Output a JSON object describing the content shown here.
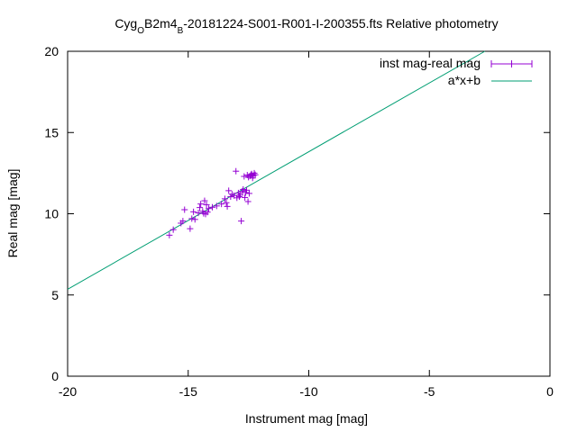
{
  "chart_data": {
    "type": "scatter",
    "title_parts": [
      {
        "text": "Cyg",
        "sub": false
      },
      {
        "text": "O",
        "sub": true
      },
      {
        "text": "B2m4",
        "sub": false
      },
      {
        "text": "B",
        "sub": true
      },
      {
        "text": "-20181224-S001-R001-I-200355.fts Relative photometry",
        "sub": false
      }
    ],
    "xlabel": "Instrument mag [mag]",
    "ylabel": "Real mag [mag]",
    "xlim": [
      -20,
      0
    ],
    "ylim": [
      0,
      20
    ],
    "xticks": [
      -20,
      -15,
      -10,
      -5,
      0
    ],
    "yticks": [
      0,
      5,
      10,
      15,
      20
    ],
    "grid": false,
    "legend_position": "top-right",
    "series": [
      {
        "name": "inst mag-real mag",
        "kind": "errorbar-points",
        "color": "#9400d3",
        "points": [
          [
            -15.78,
            8.68
          ],
          [
            -15.62,
            9.02
          ],
          [
            -15.3,
            9.42
          ],
          [
            -15.22,
            9.55
          ],
          [
            -15.15,
            10.25
          ],
          [
            -14.92,
            9.08
          ],
          [
            -14.85,
            9.7
          ],
          [
            -14.78,
            10.12
          ],
          [
            -14.72,
            9.65
          ],
          [
            -14.58,
            10.05
          ],
          [
            -14.52,
            10.38
          ],
          [
            -14.48,
            10.6
          ],
          [
            -14.4,
            10.15
          ],
          [
            -14.36,
            10.02
          ],
          [
            -14.32,
            10.8
          ],
          [
            -14.28,
            9.98
          ],
          [
            -14.24,
            10.55
          ],
          [
            -14.2,
            10.1
          ],
          [
            -14.15,
            10.32
          ],
          [
            -14.0,
            10.4
          ],
          [
            -13.82,
            10.48
          ],
          [
            -13.62,
            10.6
          ],
          [
            -13.48,
            10.92
          ],
          [
            -13.42,
            10.68
          ],
          [
            -13.38,
            10.45
          ],
          [
            -13.32,
            11.42
          ],
          [
            -13.24,
            11.05
          ],
          [
            -13.18,
            11.2
          ],
          [
            -13.1,
            11.12
          ],
          [
            -13.02,
            12.62
          ],
          [
            -12.98,
            10.98
          ],
          [
            -12.92,
            11.28
          ],
          [
            -12.88,
            11.05
          ],
          [
            -12.84,
            11.15
          ],
          [
            -12.8,
            9.55
          ],
          [
            -12.76,
            11.38
          ],
          [
            -12.72,
            11.5
          ],
          [
            -12.68,
            12.3
          ],
          [
            -12.65,
            11.0
          ],
          [
            -12.62,
            11.3
          ],
          [
            -12.58,
            11.45
          ],
          [
            -12.55,
            12.38
          ],
          [
            -12.52,
            10.75
          ],
          [
            -12.5,
            12.25
          ],
          [
            -12.47,
            11.25
          ],
          [
            -12.44,
            12.32
          ],
          [
            -12.4,
            12.4
          ],
          [
            -12.37,
            12.45
          ],
          [
            -12.33,
            12.2
          ],
          [
            -12.3,
            12.35
          ],
          [
            -12.26,
            12.5
          ],
          [
            -12.22,
            12.4
          ]
        ]
      },
      {
        "name": "a*x+b",
        "kind": "line",
        "color": "#009e73",
        "x": [
          -20,
          -2.7
        ],
        "y": [
          5.35,
          20.0
        ]
      }
    ]
  }
}
